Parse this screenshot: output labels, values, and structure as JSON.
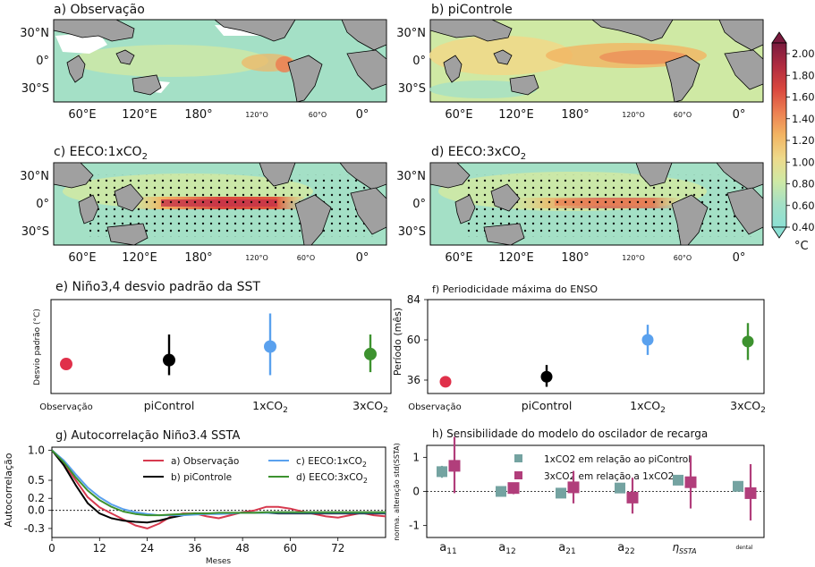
{
  "map_panels": [
    {
      "title": "a) Observação",
      "title_sub": "",
      "title_suffix": ""
    },
    {
      "title": "b) piControle",
      "title_sub": "",
      "title_suffix": ""
    },
    {
      "title": "c) EECO:1xCO",
      "title_sub": "2",
      "title_suffix": ""
    },
    {
      "title": "d) EECO:3xCO",
      "title_sub": "2",
      "title_suffix": ""
    }
  ],
  "map_lat_labels": [
    "30°N",
    "0°",
    "30°S"
  ],
  "map_lon_labels": [
    "60°E",
    "120°E",
    "180°",
    "120°O",
    "60°O",
    "0°"
  ],
  "colorbar": {
    "ticks": [
      "2.00",
      "1.80",
      "1.60",
      "1.40",
      "1.20",
      "1.00",
      "0.80",
      "0.60",
      "0.40"
    ],
    "unit": "°C",
    "colors": [
      "#7a1b3e",
      "#b02b40",
      "#d9473e",
      "#ec7f52",
      "#f2b462",
      "#eed98a",
      "#cfe9a4",
      "#a4e0c6",
      "#8ce0d4"
    ]
  },
  "panel_e": {
    "title": "e) Niño3,4 desvio padrão da SST",
    "ylabel": "Desvio padrão (°C)",
    "categories": [
      "Observação",
      "piControl",
      "1xCO",
      "3xCO"
    ],
    "category_subs": [
      "",
      "",
      "2",
      "2"
    ]
  },
  "panel_f": {
    "title": "f) Periodicidade máxima do ENSO",
    "ylabel": "Período (mês)",
    "yticks": [
      "84",
      "60",
      "36"
    ],
    "categories": [
      "Observação",
      "piControl",
      "1xCO",
      "3xCO"
    ],
    "category_subs": [
      "",
      "",
      "2",
      "2"
    ]
  },
  "panel_g": {
    "title": "g) Autocorrelação Niño3.4 SSTA",
    "ylabel": "Autocorrelação",
    "xlabel": "Meses",
    "yticks": [
      "1.0",
      "0.5",
      "0.2",
      "0.0",
      "-0.3"
    ],
    "xticks": [
      "0",
      "12",
      "24",
      "36",
      "48",
      "60",
      "72"
    ],
    "legend": [
      {
        "text": "a) Observação",
        "sub": ""
      },
      {
        "text": "b) piControle",
        "sub": ""
      },
      {
        "text": "c) EECO:1xCO",
        "sub": "2"
      },
      {
        "text": "d) EECO:3xCO",
        "sub": "2"
      }
    ]
  },
  "panel_h": {
    "title": "h) Sensibilidade do modelo do oscilador de recarga",
    "ylabel": "norma. alteração std(SSTA)",
    "yticks": [
      "1",
      "0",
      "-1"
    ],
    "legend": [
      "1xCO2 em relação ao piControl",
      "3xCO2 em relação a 1xCO2"
    ],
    "categories": [
      {
        "base": "a",
        "sub": "11"
      },
      {
        "base": "a",
        "sub": "12"
      },
      {
        "base": "a",
        "sub": "21"
      },
      {
        "base": "a",
        "sub": "22"
      },
      {
        "base": "η",
        "sub": "SSTA"
      },
      {
        "base": "dental",
        "sub": ""
      }
    ]
  },
  "chart_data": [
    {
      "type": "scatter",
      "title": "e) Niño3,4 desvio padrão da SST",
      "ylabel": "Desvio padrão (°C)",
      "categories": [
        "Observação",
        "piControl",
        "1xCO2",
        "3xCO2"
      ],
      "values": [
        0.92,
        1.05,
        1.5,
        1.25
      ],
      "error_low": [
        0.92,
        0.55,
        0.55,
        0.65
      ],
      "error_high": [
        0.92,
        1.9,
        2.6,
        1.9
      ],
      "colors": [
        "#e0304a",
        "#000000",
        "#5aa1ee",
        "#3d922f"
      ],
      "ylim": [
        0,
        3
      ]
    },
    {
      "type": "scatter",
      "title": "f) Periodicidade máxima do ENSO",
      "ylabel": "Período (mês)",
      "categories": [
        "Observação",
        "piControl",
        "1xCO2",
        "3xCO2"
      ],
      "values": [
        35,
        38,
        60,
        59
      ],
      "error_low": [
        35,
        32,
        51,
        48
      ],
      "error_high": [
        35,
        45,
        69,
        70
      ],
      "colors": [
        "#e0304a",
        "#000000",
        "#5aa1ee",
        "#3d922f"
      ],
      "ylim": [
        28,
        84
      ]
    },
    {
      "type": "line",
      "title": "g) Autocorrelação Niño3.4 SSTA",
      "xlabel": "Meses",
      "ylabel": "Autocorrelação",
      "xlim": [
        0,
        84
      ],
      "ylim": [
        -0.45,
        1.05
      ],
      "series": [
        {
          "name": "a) Observação",
          "color": "#d73a4f",
          "x": [
            0,
            3,
            6,
            9,
            12,
            15,
            18,
            21,
            24,
            27,
            30,
            33,
            36,
            39,
            42,
            45,
            48,
            51,
            54,
            57,
            60,
            63,
            66,
            69,
            72,
            75,
            78,
            81,
            84
          ],
          "y": [
            1.0,
            0.78,
            0.5,
            0.22,
            0.05,
            -0.05,
            -0.15,
            -0.25,
            -0.3,
            -0.22,
            -0.1,
            -0.05,
            -0.05,
            -0.1,
            -0.13,
            -0.08,
            -0.03,
            0.0,
            0.06,
            0.06,
            0.03,
            -0.02,
            -0.06,
            -0.1,
            -0.12,
            -0.08,
            -0.04,
            -0.08,
            -0.1
          ]
        },
        {
          "name": "b) piControle",
          "color": "#000000",
          "x": [
            0,
            3,
            6,
            9,
            12,
            15,
            18,
            21,
            24,
            27,
            30,
            33,
            36,
            39,
            42,
            45,
            48,
            51,
            54,
            57,
            60,
            63,
            66,
            69,
            72,
            75,
            78,
            81,
            84
          ],
          "y": [
            1.0,
            0.75,
            0.42,
            0.12,
            -0.05,
            -0.13,
            -0.17,
            -0.19,
            -0.2,
            -0.17,
            -0.12,
            -0.08,
            -0.05,
            -0.05,
            -0.05,
            -0.05,
            -0.04,
            -0.04,
            -0.04,
            -0.05,
            -0.05,
            -0.05,
            -0.05,
            -0.05,
            -0.05,
            -0.05,
            -0.05,
            -0.05,
            -0.05
          ]
        },
        {
          "name": "c) EECO:1xCO2",
          "color": "#5aa1ee",
          "x": [
            0,
            3,
            6,
            9,
            12,
            15,
            18,
            21,
            24,
            27,
            30,
            33,
            36,
            39,
            42,
            45,
            48,
            51,
            54,
            57,
            60,
            63,
            66,
            69,
            72,
            75,
            78,
            81,
            84
          ],
          "y": [
            1.0,
            0.83,
            0.6,
            0.38,
            0.22,
            0.1,
            0.02,
            -0.03,
            -0.06,
            -0.08,
            -0.08,
            -0.08,
            -0.07,
            -0.06,
            -0.06,
            -0.05,
            -0.04,
            -0.04,
            -0.04,
            -0.04,
            -0.04,
            -0.04,
            -0.04,
            -0.04,
            -0.04,
            -0.04,
            -0.04,
            -0.04,
            -0.04
          ]
        },
        {
          "name": "d) EECO:3xCO2",
          "color": "#3d922f",
          "x": [
            0,
            3,
            6,
            9,
            12,
            15,
            18,
            21,
            24,
            27,
            30,
            33,
            36,
            39,
            42,
            45,
            48,
            51,
            54,
            57,
            60,
            63,
            66,
            69,
            72,
            75,
            78,
            81,
            84
          ],
          "y": [
            1.0,
            0.8,
            0.55,
            0.33,
            0.17,
            0.06,
            -0.02,
            -0.06,
            -0.08,
            -0.08,
            -0.07,
            -0.06,
            -0.05,
            -0.05,
            -0.04,
            -0.04,
            -0.04,
            -0.04,
            -0.03,
            -0.03,
            -0.03,
            -0.03,
            -0.03,
            -0.03,
            -0.03,
            -0.03,
            -0.03,
            -0.03,
            -0.03
          ]
        }
      ]
    },
    {
      "type": "scatter",
      "title": "h) Sensibilidade do modelo do oscilador de recarga",
      "ylabel": "norma. alteração std(SSTA)",
      "categories": [
        "a11",
        "a12",
        "a21",
        "a22",
        "ηSSTA",
        "dental"
      ],
      "ylim": [
        -1.35,
        1.35
      ],
      "series": [
        {
          "name": "1xCO2 em relação ao piControl",
          "color": "#74a3a1",
          "values": [
            0.58,
            0.0,
            -0.05,
            0.1,
            0.33,
            0.15
          ],
          "error_low": [
            0.4,
            -0.05,
            -0.1,
            0.0,
            0.25,
            0.08
          ],
          "error_high": [
            0.75,
            0.05,
            0.0,
            0.2,
            0.42,
            0.22
          ]
        },
        {
          "name": "3xCO2 em relação a 1xCO2",
          "color": "#b13e7b",
          "values": [
            0.75,
            0.1,
            0.12,
            -0.18,
            0.27,
            -0.05
          ],
          "error_low": [
            -0.05,
            -0.08,
            -0.35,
            -0.65,
            -0.5,
            -0.85
          ],
          "error_high": [
            1.6,
            0.25,
            0.6,
            0.4,
            1.05,
            0.8
          ]
        }
      ]
    }
  ]
}
